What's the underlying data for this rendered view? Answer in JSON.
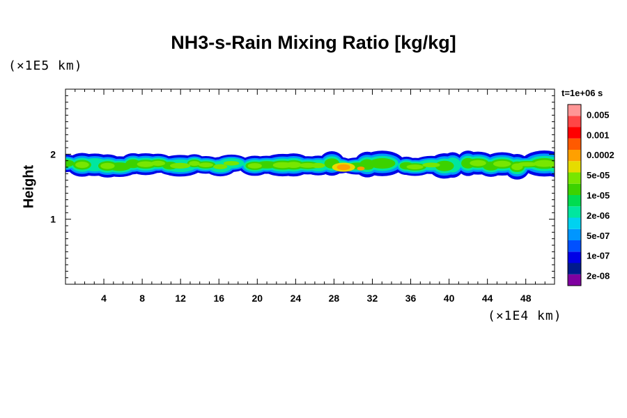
{
  "chart_data": {
    "type": "heatmap",
    "title": "NH3-s-Rain Mixing Ratio [kg/kg]",
    "ylabel": "Height",
    "x_unit": "(×1E4 km)",
    "y_unit": "(×1E5 km)",
    "time": "t=1e+06 s",
    "xlim": [
      0,
      51
    ],
    "ylim": [
      0,
      3
    ],
    "x_ticks": [
      "4",
      "8",
      "12",
      "16",
      "20",
      "24",
      "28",
      "32",
      "36",
      "40",
      "44",
      "48"
    ],
    "y_ticks": [
      "1",
      "2"
    ],
    "colorbar": {
      "colors": [
        "#7f00a0",
        "#001a8c",
        "#0000e6",
        "#0050ff",
        "#0096ff",
        "#00d2f0",
        "#00e6a0",
        "#00dc50",
        "#3cd200",
        "#78e600",
        "#e6dc00",
        "#ffa000",
        "#ff5a00",
        "#ff0000",
        "#ff4646",
        "#ff9696"
      ],
      "labels": [
        "2e-08",
        "1e-07",
        "5e-07",
        "2e-06",
        "1e-05",
        "5e-05",
        "0.0002",
        "0.001",
        "0.005"
      ]
    },
    "band": {
      "y_bottom": 1.68,
      "y_top": 1.99,
      "peak": {
        "x": 29,
        "y": 1.8,
        "value": "0.0002"
      }
    }
  }
}
